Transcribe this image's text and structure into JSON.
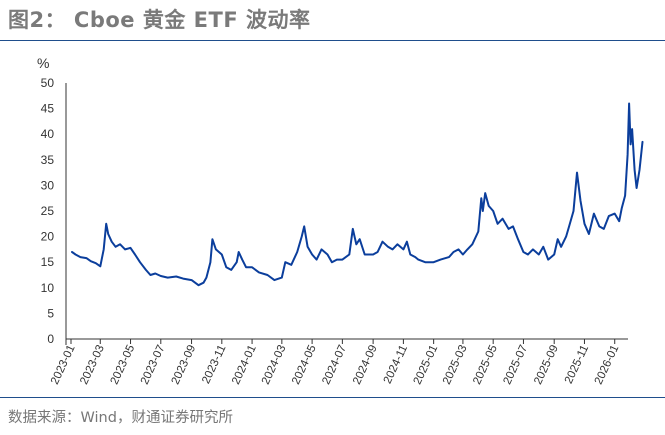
{
  "header": {
    "title": "图2： Cboe 黄金 ETF 波动率"
  },
  "footer": {
    "source": "数据来源：Wind，财通证券研究所"
  },
  "colors": {
    "series": "#0b3e9c",
    "rule": "#1f4e8c",
    "axis": "#333333"
  },
  "chart_data": {
    "type": "line",
    "title": "",
    "ylabel": "%",
    "xlabel": "",
    "ylim": [
      0,
      50
    ],
    "yticks": [
      0,
      5,
      10,
      15,
      20,
      25,
      30,
      35,
      40,
      45,
      50
    ],
    "xticks": [
      "2023-01",
      "2023-03",
      "2023-05",
      "2023-07",
      "2023-09",
      "2023-11",
      "2024-01",
      "2024-03",
      "2024-05",
      "2024-07",
      "2024-09",
      "2024-11",
      "2025-01",
      "2025-03",
      "2025-05",
      "2025-07",
      "2025-09",
      "2025-11",
      "2026-01"
    ],
    "grid": false,
    "series": [
      {
        "name": "",
        "points": [
          [
            "2023-01-03",
            17.0
          ],
          [
            "2023-01-10",
            16.5
          ],
          [
            "2023-01-20",
            16.0
          ],
          [
            "2023-02-01",
            15.8
          ],
          [
            "2023-02-10",
            15.2
          ],
          [
            "2023-02-20",
            14.8
          ],
          [
            "2023-03-01",
            14.2
          ],
          [
            "2023-03-08",
            17.5
          ],
          [
            "2023-03-13",
            22.5
          ],
          [
            "2023-03-17",
            20.5
          ],
          [
            "2023-03-24",
            19.0
          ],
          [
            "2023-04-01",
            18.0
          ],
          [
            "2023-04-10",
            18.5
          ],
          [
            "2023-04-20",
            17.5
          ],
          [
            "2023-05-01",
            17.8
          ],
          [
            "2023-05-10",
            16.5
          ],
          [
            "2023-05-20",
            15.0
          ],
          [
            "2023-06-01",
            13.5
          ],
          [
            "2023-06-10",
            12.5
          ],
          [
            "2023-06-20",
            12.8
          ],
          [
            "2023-07-01",
            12.3
          ],
          [
            "2023-07-15",
            12.0
          ],
          [
            "2023-08-01",
            12.2
          ],
          [
            "2023-08-15",
            11.8
          ],
          [
            "2023-09-01",
            11.5
          ],
          [
            "2023-09-15",
            10.5
          ],
          [
            "2023-09-25",
            11.0
          ],
          [
            "2023-10-01",
            12.0
          ],
          [
            "2023-10-09",
            15.0
          ],
          [
            "2023-10-13",
            19.5
          ],
          [
            "2023-10-20",
            17.5
          ],
          [
            "2023-11-01",
            16.5
          ],
          [
            "2023-11-10",
            14.0
          ],
          [
            "2023-11-20",
            13.5
          ],
          [
            "2023-12-01",
            15.0
          ],
          [
            "2023-12-05",
            17.0
          ],
          [
            "2023-12-12",
            15.5
          ],
          [
            "2023-12-20",
            14.0
          ],
          [
            "2024-01-01",
            14.0
          ],
          [
            "2024-01-15",
            13.0
          ],
          [
            "2024-02-01",
            12.5
          ],
          [
            "2024-02-15",
            11.5
          ],
          [
            "2024-03-01",
            12.0
          ],
          [
            "2024-03-08",
            15.0
          ],
          [
            "2024-03-20",
            14.5
          ],
          [
            "2024-04-01",
            17.0
          ],
          [
            "2024-04-10",
            20.0
          ],
          [
            "2024-04-15",
            22.0
          ],
          [
            "2024-04-22",
            18.0
          ],
          [
            "2024-05-01",
            16.5
          ],
          [
            "2024-05-10",
            15.5
          ],
          [
            "2024-05-20",
            17.5
          ],
          [
            "2024-06-01",
            16.5
          ],
          [
            "2024-06-10",
            15.0
          ],
          [
            "2024-06-20",
            15.5
          ],
          [
            "2024-07-01",
            15.5
          ],
          [
            "2024-07-15",
            16.5
          ],
          [
            "2024-07-22",
            21.5
          ],
          [
            "2024-07-29",
            18.5
          ],
          [
            "2024-08-05",
            19.5
          ],
          [
            "2024-08-15",
            16.5
          ],
          [
            "2024-09-01",
            16.5
          ],
          [
            "2024-09-10",
            17.0
          ],
          [
            "2024-09-20",
            19.0
          ],
          [
            "2024-10-01",
            18.0
          ],
          [
            "2024-10-10",
            17.5
          ],
          [
            "2024-10-20",
            18.5
          ],
          [
            "2024-11-01",
            17.5
          ],
          [
            "2024-11-08",
            19.0
          ],
          [
            "2024-11-15",
            16.5
          ],
          [
            "2024-11-25",
            16.0
          ],
          [
            "2024-12-01",
            15.5
          ],
          [
            "2024-12-15",
            15.0
          ],
          [
            "2025-01-01",
            15.0
          ],
          [
            "2025-01-15",
            15.5
          ],
          [
            "2025-02-01",
            16.0
          ],
          [
            "2025-02-10",
            17.0
          ],
          [
            "2025-02-20",
            17.5
          ],
          [
            "2025-03-01",
            16.5
          ],
          [
            "2025-03-10",
            17.5
          ],
          [
            "2025-03-20",
            18.5
          ],
          [
            "2025-04-01",
            21.0
          ],
          [
            "2025-04-07",
            27.5
          ],
          [
            "2025-04-10",
            25.0
          ],
          [
            "2025-04-15",
            28.5
          ],
          [
            "2025-04-22",
            26.0
          ],
          [
            "2025-05-01",
            25.0
          ],
          [
            "2025-05-10",
            22.5
          ],
          [
            "2025-05-20",
            23.5
          ],
          [
            "2025-06-01",
            21.5
          ],
          [
            "2025-06-10",
            22.0
          ],
          [
            "2025-06-20",
            19.5
          ],
          [
            "2025-07-01",
            17.0
          ],
          [
            "2025-07-10",
            16.5
          ],
          [
            "2025-07-20",
            17.5
          ],
          [
            "2025-08-01",
            16.5
          ],
          [
            "2025-08-10",
            18.0
          ],
          [
            "2025-08-20",
            15.5
          ],
          [
            "2025-09-01",
            16.5
          ],
          [
            "2025-09-08",
            19.5
          ],
          [
            "2025-09-15",
            18.0
          ],
          [
            "2025-09-25",
            20.0
          ],
          [
            "2025-10-01",
            22.0
          ],
          [
            "2025-10-10",
            25.0
          ],
          [
            "2025-10-17",
            32.5
          ],
          [
            "2025-10-24",
            27.0
          ],
          [
            "2025-11-01",
            22.5
          ],
          [
            "2025-11-10",
            20.5
          ],
          [
            "2025-11-20",
            24.5
          ],
          [
            "2025-12-01",
            22.0
          ],
          [
            "2025-12-10",
            21.5
          ],
          [
            "2025-12-20",
            24.0
          ],
          [
            "2026-01-01",
            24.5
          ],
          [
            "2026-01-10",
            23.0
          ],
          [
            "2026-01-15",
            25.5
          ],
          [
            "2026-01-22",
            28.0
          ],
          [
            "2026-01-27",
            36.0
          ],
          [
            "2026-01-30",
            46.0
          ],
          [
            "2026-02-02",
            38.0
          ],
          [
            "2026-02-05",
            41.0
          ],
          [
            "2026-02-10",
            33.0
          ],
          [
            "2026-02-14",
            29.5
          ],
          [
            "2026-02-20",
            33.0
          ],
          [
            "2026-02-26",
            38.5
          ]
        ]
      }
    ]
  }
}
